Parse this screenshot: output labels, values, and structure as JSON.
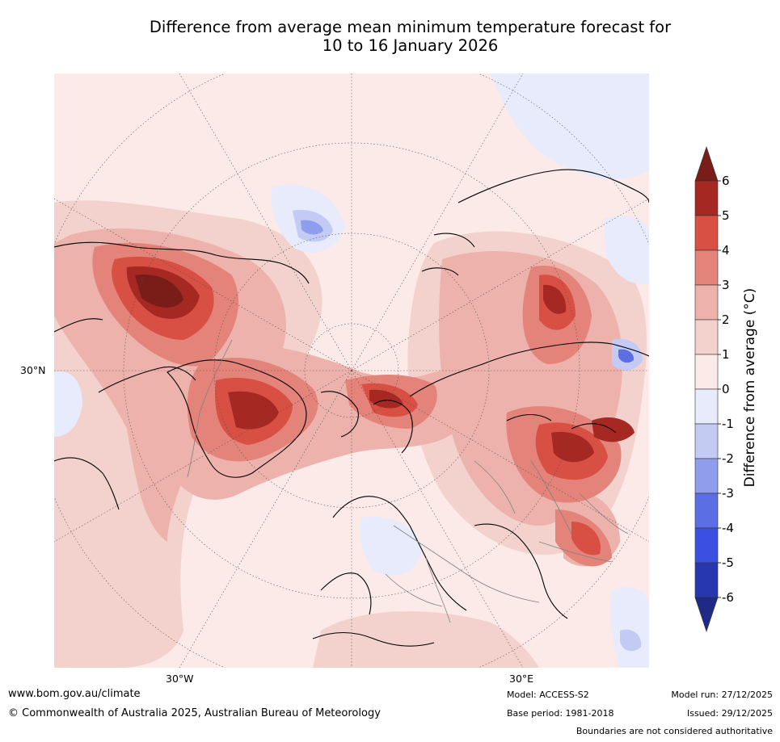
{
  "title": {
    "line1": "Difference from average mean minimum temperature forecast for",
    "line2": "10 to 16 January 2026"
  },
  "map": {
    "lat_label": "30°N",
    "lon_labels": [
      "30°W",
      "30°E"
    ],
    "colors": {
      "ocean_neutral": "#fbeae7",
      "plus_0_1": "#fbeae7",
      "plus_1_2": "#f3d2cd",
      "plus_2_3": "#ecb2ab",
      "plus_3_4": "#e38379",
      "plus_4_5": "#d84f43",
      "plus_5_6": "#a52823",
      "plus_6_over": "#7a1c17",
      "minus_0_1": "#e7ebfb",
      "minus_1_2": "#c3cbf4",
      "minus_2_3": "#8f9ded",
      "minus_3_4": "#5b6ee3"
    }
  },
  "colorbar": {
    "title": "Difference from average (°C)",
    "ticks": [
      "6",
      "5",
      "4",
      "3",
      "2",
      "1",
      "0",
      "-1",
      "-2",
      "-3",
      "-4",
      "-5",
      "-6"
    ],
    "colors": [
      "#7a1c17",
      "#a52823",
      "#d84f43",
      "#e38379",
      "#ecb2ab",
      "#f3d2cd",
      "#fbeae7",
      "#e7ebfb",
      "#c3cbf4",
      "#8f9ded",
      "#5b6ee3",
      "#3a50e0",
      "#2637b0",
      "#1e2a85"
    ]
  },
  "footer": {
    "website": "www.bom.gov.au/climate",
    "copyright": "© Commonwealth of Australia 2025, Australian Bureau of Meteorology",
    "model": "Model: ACCESS-S2",
    "base_period": "Base period: 1981-2018",
    "model_run": "Model run: 27/12/2025",
    "issued": "Issued: 29/12/2025",
    "disclaimer": "Boundaries are not considered authoritative"
  }
}
